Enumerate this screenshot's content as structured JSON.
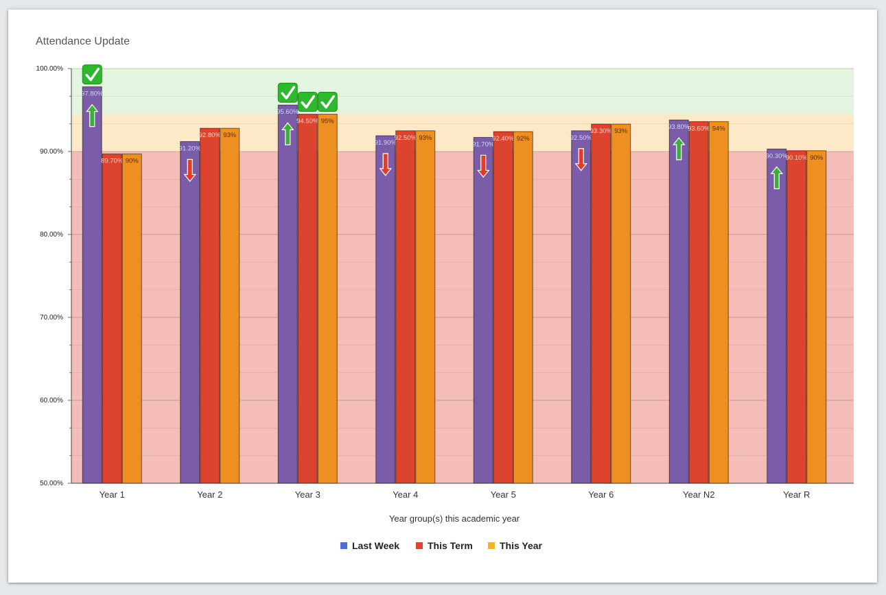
{
  "card": {
    "title": "Attendance Update"
  },
  "chart_data": {
    "type": "bar",
    "title": "Attendance Update",
    "xlabel": "Year group(s) this academic year",
    "ylabel": "",
    "ylim": [
      50,
      100
    ],
    "yticks": [
      "50.00%",
      "60.00%",
      "70.00%",
      "80.00%",
      "90.00%",
      "100.00%"
    ],
    "ytick_values": [
      50,
      60,
      70,
      80,
      90,
      100
    ],
    "categories": [
      "Year 1",
      "Year 2",
      "Year 3",
      "Year 4",
      "Year 5",
      "Year 6",
      "Year N2",
      "Year R"
    ],
    "series": [
      {
        "name": "Last Week",
        "color": "#4a6fdc",
        "bar_color": "#7a5ca8",
        "values": [
          97.8,
          91.2,
          95.6,
          91.9,
          91.7,
          92.5,
          93.8,
          90.3
        ],
        "labels": [
          "97.80%",
          "91.20%",
          "95.60%",
          "91.90%",
          "91.70%",
          "92.50%",
          "93.80%",
          "90.30%"
        ],
        "trend": [
          "up",
          "down",
          "up",
          "down",
          "down",
          "down",
          "up",
          "up"
        ],
        "target_met": [
          true,
          false,
          true,
          false,
          false,
          false,
          false,
          false
        ]
      },
      {
        "name": "This Term",
        "color": "#e0442c",
        "bar_color": "#dc4430",
        "values": [
          89.7,
          92.8,
          94.5,
          92.5,
          92.4,
          93.3,
          93.6,
          90.1
        ],
        "labels": [
          "89.70%",
          "92.80%",
          "94.50%",
          "92.50%",
          "92.40%",
          "93.30%",
          "93.60%",
          "90.10%"
        ],
        "target_met": [
          false,
          false,
          true,
          false,
          false,
          false,
          false,
          false
        ]
      },
      {
        "name": "This Year",
        "color": "#f4b323",
        "bar_color": "#ee8f22",
        "values": [
          89.7,
          92.8,
          94.5,
          92.5,
          92.4,
          93.3,
          93.6,
          90.1
        ],
        "labels": [
          "90%",
          "93%",
          "95%",
          "93%",
          "92%",
          "93%",
          "94%",
          "90%"
        ],
        "target_met": [
          false,
          false,
          true,
          false,
          false,
          false,
          false,
          false
        ]
      }
    ],
    "bands": [
      {
        "from": 50,
        "to": 90,
        "color": "#f4bdb7"
      },
      {
        "from": 90,
        "to": 94.5,
        "color": "#fde8c8"
      },
      {
        "from": 94.5,
        "to": 100,
        "color": "#e3f5de"
      }
    ],
    "grid": true,
    "legend_position": "bottom-center"
  },
  "icons": {
    "check": "check-mark-icon",
    "up": "arrow-up-icon",
    "down": "arrow-down-icon"
  },
  "colors": {
    "arrow_up": "#3cae3a",
    "arrow_down": "#e33b2c",
    "check_bg": "#2eb82e"
  }
}
